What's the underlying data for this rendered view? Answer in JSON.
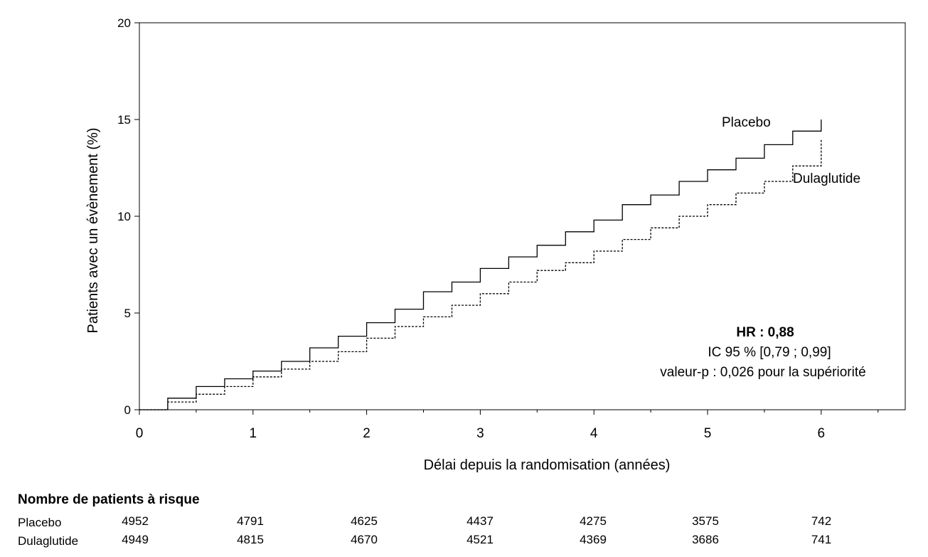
{
  "chart_data": {
    "type": "line",
    "title": "",
    "xlabel": "Délai depuis la randomisation (années)",
    "ylabel": "Patients avec un évènement (%)",
    "xlim": [
      0,
      6.7
    ],
    "ylim": [
      0,
      20
    ],
    "xticks": [
      "0",
      "1",
      "2",
      "3",
      "4",
      "5",
      "6"
    ],
    "yticks": [
      "0",
      "5",
      "10",
      "15",
      "20"
    ],
    "grid": false,
    "series": [
      {
        "name": "Placebo",
        "style": "solid",
        "x": [
          0,
          0.25,
          0.5,
          0.75,
          1,
          1.25,
          1.5,
          1.75,
          2,
          2.25,
          2.5,
          2.75,
          3,
          3.25,
          3.5,
          3.75,
          4,
          4.25,
          4.5,
          4.75,
          5,
          5.25,
          5.5,
          5.75,
          6
        ],
        "y": [
          0,
          0.6,
          1.2,
          1.6,
          2.0,
          2.5,
          3.2,
          3.8,
          4.5,
          5.2,
          6.1,
          6.6,
          7.3,
          7.9,
          8.5,
          9.2,
          9.8,
          10.6,
          11.1,
          11.8,
          12.4,
          13.0,
          13.7,
          14.4,
          15.0
        ]
      },
      {
        "name": "Dulaglutide",
        "style": "dashed",
        "x": [
          0,
          0.25,
          0.5,
          0.75,
          1,
          1.25,
          1.5,
          1.75,
          2,
          2.25,
          2.5,
          2.75,
          3,
          3.25,
          3.5,
          3.75,
          4,
          4.25,
          4.5,
          4.75,
          5,
          5.25,
          5.5,
          5.75,
          6
        ],
        "y": [
          0,
          0.4,
          0.8,
          1.2,
          1.7,
          2.1,
          2.5,
          3.0,
          3.7,
          4.3,
          4.8,
          5.4,
          6.0,
          6.6,
          7.2,
          7.6,
          8.2,
          8.8,
          9.4,
          10.0,
          10.6,
          11.2,
          11.8,
          12.6,
          14.0
        ]
      }
    ],
    "series_labels": [
      "Placebo",
      "Dulaglutide"
    ],
    "annotations": {
      "hr": "HR : 0,88",
      "ci": "IC 95 % [0,79 ; 0,99]",
      "pvalue": "valeur-p : 0,026 pour la supériorité"
    }
  },
  "risk_table": {
    "title": "Nombre de patients à risque",
    "rows": [
      {
        "label": "Placebo",
        "values": [
          "4952",
          "4791",
          "4625",
          "4437",
          "4275",
          "3575",
          "742"
        ]
      },
      {
        "label": "Dulaglutide",
        "values": [
          "4949",
          "4815",
          "4670",
          "4521",
          "4369",
          "3686",
          "741"
        ]
      }
    ]
  }
}
